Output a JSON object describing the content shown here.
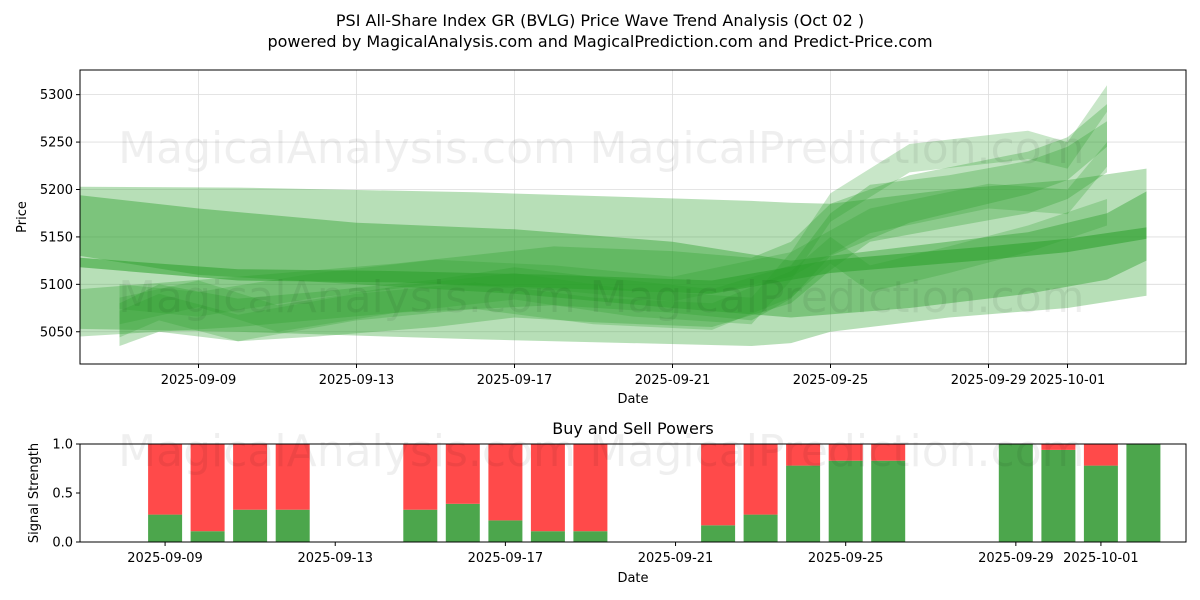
{
  "figure": {
    "title": "PSI All-Share Index GR (BVLG) Price Wave Trend Analysis (Oct 02 )",
    "subtitle": "powered by MagicalAnalysis.com and MagicalPrediction.com and Predict-Price.com",
    "watermarks": [
      "MagicalAnalysis.com",
      "MagicalPrediction.com"
    ],
    "colors": {
      "band": "#2ca02c",
      "buy": "#4ca64c",
      "sell": "#ff4a4a"
    }
  },
  "chart_data": [
    {
      "type": "area",
      "xlabel": "Date",
      "ylabel": "Price",
      "ylim": [
        5016,
        5326
      ],
      "xlim": [
        "2025-09-06",
        "2025-10-04"
      ],
      "yticks": [
        5050,
        5100,
        5150,
        5200,
        5250,
        5300
      ],
      "xticks": [
        "2025-09-09",
        "2025-09-13",
        "2025-09-17",
        "2025-09-21",
        "2025-09-25",
        "2025-09-29",
        "2025-10-01"
      ],
      "grid": true,
      "bands": [
        {
          "name": "wide-band-1",
          "x": [
            "2025-09-06",
            "2025-09-10",
            "2025-09-16",
            "2025-09-23",
            "2025-09-24",
            "2025-09-25",
            "2025-09-28",
            "2025-10-01",
            "2025-10-03"
          ],
          "upper": [
            5203,
            5202,
            5197,
            5188,
            5186,
            5185,
            5200,
            5210,
            5222
          ],
          "lower": [
            5053,
            5050,
            5042,
            5035,
            5038,
            5050,
            5065,
            5075,
            5088
          ]
        },
        {
          "name": "wide-band-2",
          "x": [
            "2025-09-06",
            "2025-09-09",
            "2025-09-13",
            "2025-09-17",
            "2025-09-21",
            "2025-09-24",
            "2025-09-27",
            "2025-09-30",
            "2025-10-02",
            "2025-10-03"
          ],
          "upper": [
            5194,
            5180,
            5165,
            5158,
            5145,
            5125,
            5140,
            5155,
            5175,
            5198
          ],
          "lower": [
            5130,
            5110,
            5100,
            5090,
            5075,
            5065,
            5075,
            5090,
            5105,
            5125
          ]
        },
        {
          "name": "mid-band-1",
          "x": [
            "2025-09-06",
            "2025-09-10",
            "2025-09-14",
            "2025-09-18",
            "2025-09-21",
            "2025-09-23",
            "2025-09-24",
            "2025-09-25",
            "2025-09-27",
            "2025-09-30",
            "2025-10-01",
            "2025-10-02"
          ],
          "upper": [
            5095,
            5108,
            5122,
            5140,
            5135,
            5128,
            5145,
            5185,
            5215,
            5240,
            5255,
            5290
          ],
          "lower": [
            5045,
            5055,
            5070,
            5078,
            5070,
            5062,
            5085,
            5130,
            5165,
            5195,
            5210,
            5245
          ]
        },
        {
          "name": "mid-band-2",
          "x": [
            "2025-09-07",
            "2025-09-08",
            "2025-09-10",
            "2025-09-12",
            "2025-09-15",
            "2025-09-17",
            "2025-09-19",
            "2025-09-22",
            "2025-09-24",
            "2025-09-25",
            "2025-09-26",
            "2025-09-28",
            "2025-09-30",
            "2025-10-01",
            "2025-10-02"
          ],
          "upper": [
            5080,
            5100,
            5085,
            5092,
            5105,
            5118,
            5108,
            5095,
            5120,
            5175,
            5205,
            5215,
            5230,
            5245,
            5272
          ],
          "lower": [
            5035,
            5050,
            5040,
            5045,
            5055,
            5065,
            5060,
            5055,
            5080,
            5115,
            5145,
            5160,
            5175,
            5190,
            5218
          ]
        },
        {
          "name": "thin-band-1",
          "x": [
            "2025-09-07",
            "2025-09-09",
            "2025-09-11",
            "2025-09-14",
            "2025-09-17",
            "2025-09-20",
            "2025-09-23",
            "2025-09-24",
            "2025-09-25",
            "2025-09-27",
            "2025-09-30",
            "2025-10-01",
            "2025-10-02"
          ],
          "upper": [
            5086,
            5104,
            5078,
            5098,
            5112,
            5094,
            5086,
            5134,
            5196,
            5248,
            5262,
            5250,
            5310
          ],
          "lower": [
            5058,
            5076,
            5050,
            5070,
            5084,
            5066,
            5058,
            5104,
            5166,
            5218,
            5232,
            5222,
            5282
          ]
        },
        {
          "name": "thin-band-2",
          "x": [
            "2025-09-07",
            "2025-09-08",
            "2025-09-10",
            "2025-09-13",
            "2025-09-16",
            "2025-09-19",
            "2025-09-22",
            "2025-09-24",
            "2025-09-25",
            "2025-09-26",
            "2025-09-28",
            "2025-09-30",
            "2025-10-02"
          ],
          "upper": [
            5072,
            5090,
            5068,
            5090,
            5102,
            5086,
            5080,
            5114,
            5150,
            5120,
            5140,
            5162,
            5190
          ],
          "lower": [
            5044,
            5062,
            5040,
            5062,
            5074,
            5058,
            5052,
            5086,
            5122,
            5092,
            5112,
            5134,
            5162
          ]
        },
        {
          "name": "thin-band-3",
          "x": [
            "2025-09-07",
            "2025-09-09",
            "2025-09-12",
            "2025-09-15",
            "2025-09-18",
            "2025-09-21",
            "2025-09-24",
            "2025-09-26",
            "2025-09-29",
            "2025-10-01",
            "2025-10-02"
          ],
          "upper": [
            5100,
            5092,
            5112,
            5126,
            5120,
            5108,
            5134,
            5180,
            5206,
            5200,
            5250
          ],
          "lower": [
            5074,
            5066,
            5086,
            5100,
            5094,
            5082,
            5108,
            5154,
            5180,
            5174,
            5224
          ]
        },
        {
          "name": "trend-center",
          "x": [
            "2025-09-06",
            "2025-09-10",
            "2025-09-14",
            "2025-09-18",
            "2025-09-22",
            "2025-09-25",
            "2025-09-29",
            "2025-10-01",
            "2025-10-03"
          ],
          "upper": [
            5128,
            5116,
            5114,
            5110,
            5104,
            5126,
            5140,
            5148,
            5160
          ],
          "lower": [
            5118,
            5104,
            5102,
            5096,
            5090,
            5112,
            5126,
            5134,
            5148
          ]
        }
      ]
    },
    {
      "type": "bar",
      "title": "Buy and Sell Powers",
      "xlabel": "Date",
      "ylabel": "Signal Strength",
      "ylim": [
        0,
        1
      ],
      "yticks": [
        "0.0",
        "0.5",
        "1.0"
      ],
      "xlim": [
        "2025-09-07",
        "2025-10-03"
      ],
      "xticks": [
        "2025-09-09",
        "2025-09-13",
        "2025-09-17",
        "2025-09-21",
        "2025-09-25",
        "2025-09-29",
        "2025-10-01"
      ],
      "categories": [
        "2025-09-09",
        "2025-09-10",
        "2025-09-11",
        "2025-09-12",
        "2025-09-15",
        "2025-09-16",
        "2025-09-17",
        "2025-09-18",
        "2025-09-19",
        "2025-09-22",
        "2025-09-23",
        "2025-09-24",
        "2025-09-25",
        "2025-09-26",
        "2025-09-29",
        "2025-09-30",
        "2025-10-01",
        "2025-10-02"
      ],
      "series": [
        {
          "name": "Buy",
          "values": [
            0.28,
            0.11,
            0.33,
            0.33,
            0.33,
            0.39,
            0.22,
            0.11,
            0.11,
            0.17,
            0.28,
            0.78,
            0.83,
            0.83,
            1.0,
            0.94,
            0.78,
            1.0
          ]
        },
        {
          "name": "Sell",
          "values": [
            0.72,
            0.89,
            0.67,
            0.67,
            0.67,
            0.61,
            0.78,
            0.89,
            0.89,
            0.83,
            0.72,
            0.22,
            0.17,
            0.17,
            0.0,
            0.06,
            0.22,
            0.0
          ]
        }
      ]
    }
  ]
}
